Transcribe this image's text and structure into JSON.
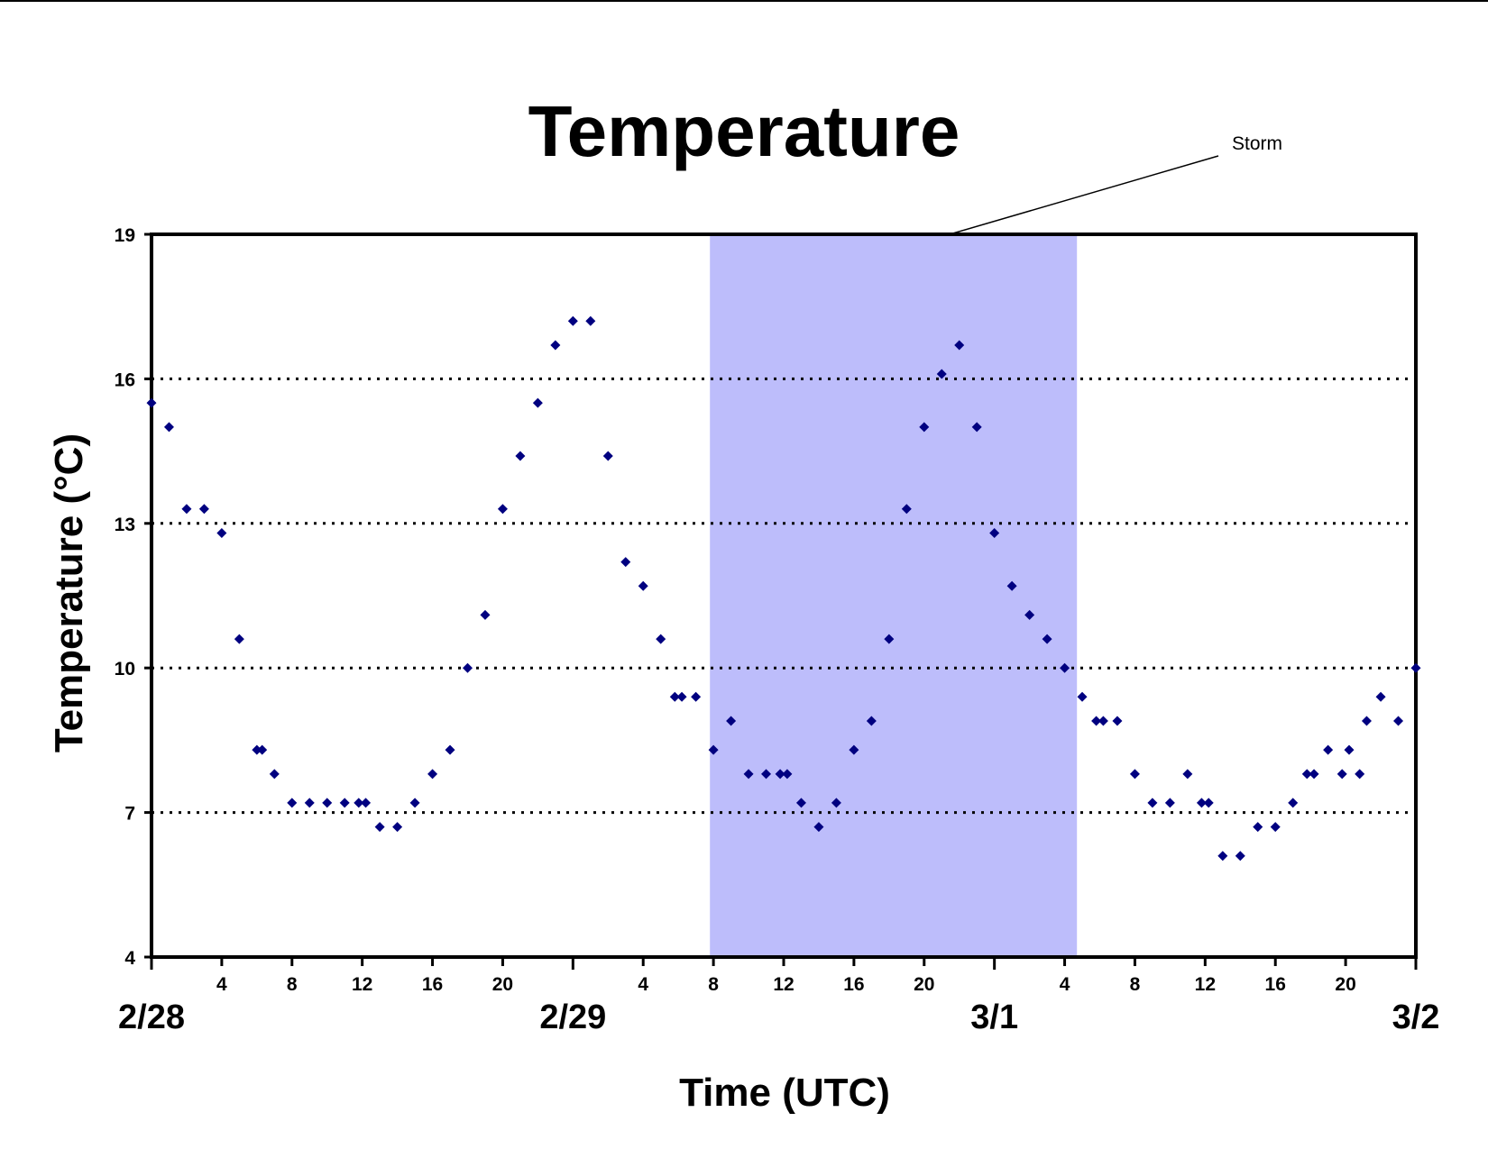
{
  "chart_data": {
    "type": "scatter",
    "title": "Temperature",
    "xlabel": "Time (UTC)",
    "ylabel": "Temperature (°C)",
    "ylim": [
      4,
      19
    ],
    "yticks": [
      "4",
      "7",
      "10",
      "13",
      "16",
      "19"
    ],
    "ygrid_values": [
      7,
      10,
      13,
      16
    ],
    "grid_style": "dotted",
    "xlim_hours": [
      0,
      72
    ],
    "x_hour_ticks": [
      {
        "h": 4,
        "label": "4"
      },
      {
        "h": 8,
        "label": "8"
      },
      {
        "h": 12,
        "label": "12"
      },
      {
        "h": 16,
        "label": "16"
      },
      {
        "h": 20,
        "label": "20"
      },
      {
        "h": 28,
        "label": "4"
      },
      {
        "h": 32,
        "label": "8"
      },
      {
        "h": 36,
        "label": "12"
      },
      {
        "h": 40,
        "label": "16"
      },
      {
        "h": 44,
        "label": "20"
      },
      {
        "h": 52,
        "label": "4"
      },
      {
        "h": 56,
        "label": "8"
      },
      {
        "h": 60,
        "label": "12"
      },
      {
        "h": 64,
        "label": "16"
      },
      {
        "h": 68,
        "label": "20"
      }
    ],
    "day_labels": [
      {
        "h": 0,
        "label": "2/28"
      },
      {
        "h": 24,
        "label": "2/29"
      },
      {
        "h": 48,
        "label": "3/1"
      },
      {
        "h": 72,
        "label": "3/2"
      }
    ],
    "shaded_region": {
      "label": "Storm",
      "from_h": 31.8,
      "to_h": 52.7,
      "color": "#bdbdfb"
    },
    "marker_color": "#000080",
    "series": [
      {
        "name": "",
        "points": [
          [
            0,
            15.5
          ],
          [
            1,
            15.0
          ],
          [
            2,
            13.3
          ],
          [
            3,
            13.3
          ],
          [
            4,
            12.8
          ],
          [
            5,
            10.6
          ],
          [
            6,
            8.3
          ],
          [
            6.3,
            8.3
          ],
          [
            7,
            7.8
          ],
          [
            8,
            7.2
          ],
          [
            9,
            7.2
          ],
          [
            10,
            7.2
          ],
          [
            11,
            7.2
          ],
          [
            11.8,
            7.2
          ],
          [
            12.2,
            7.2
          ],
          [
            13,
            6.7
          ],
          [
            14,
            6.7
          ],
          [
            15,
            7.2
          ],
          [
            16,
            7.8
          ],
          [
            17,
            8.3
          ],
          [
            18,
            10.0
          ],
          [
            19,
            11.1
          ],
          [
            20,
            13.3
          ],
          [
            21,
            14.4
          ],
          [
            22,
            15.5
          ],
          [
            23,
            16.7
          ],
          [
            24,
            17.2
          ],
          [
            25,
            17.2
          ],
          [
            26,
            14.4
          ],
          [
            27,
            12.2
          ],
          [
            28,
            11.7
          ],
          [
            29,
            10.6
          ],
          [
            29.8,
            9.4
          ],
          [
            30.2,
            9.4
          ],
          [
            31,
            9.4
          ],
          [
            32,
            8.3
          ],
          [
            33,
            8.9
          ],
          [
            34,
            7.8
          ],
          [
            35,
            7.8
          ],
          [
            35.8,
            7.8
          ],
          [
            36.2,
            7.8
          ],
          [
            37,
            7.2
          ],
          [
            38,
            6.7
          ],
          [
            39,
            7.2
          ],
          [
            40,
            8.3
          ],
          [
            41,
            8.9
          ],
          [
            42,
            10.6
          ],
          [
            43,
            13.3
          ],
          [
            44,
            15.0
          ],
          [
            45,
            16.1
          ],
          [
            46,
            16.7
          ],
          [
            47,
            15.0
          ],
          [
            48,
            12.8
          ],
          [
            49,
            11.7
          ],
          [
            50,
            11.1
          ],
          [
            51,
            10.6
          ],
          [
            52,
            10.0
          ],
          [
            53,
            9.4
          ],
          [
            53.8,
            8.9
          ],
          [
            54.2,
            8.9
          ],
          [
            55,
            8.9
          ],
          [
            56,
            7.8
          ],
          [
            57,
            7.2
          ],
          [
            58,
            7.2
          ],
          [
            59,
            7.8
          ],
          [
            59.8,
            7.2
          ],
          [
            60.2,
            7.2
          ],
          [
            61,
            6.1
          ],
          [
            62,
            6.1
          ],
          [
            63,
            6.7
          ],
          [
            64,
            6.7
          ],
          [
            65,
            7.2
          ],
          [
            65.8,
            7.8
          ],
          [
            66.2,
            7.8
          ],
          [
            67,
            8.3
          ],
          [
            67.8,
            7.8
          ],
          [
            68.2,
            8.3
          ],
          [
            68.8,
            7.8
          ],
          [
            69.2,
            8.9
          ],
          [
            70,
            9.4
          ],
          [
            71,
            8.9
          ],
          [
            72,
            10.0
          ]
        ]
      }
    ]
  }
}
